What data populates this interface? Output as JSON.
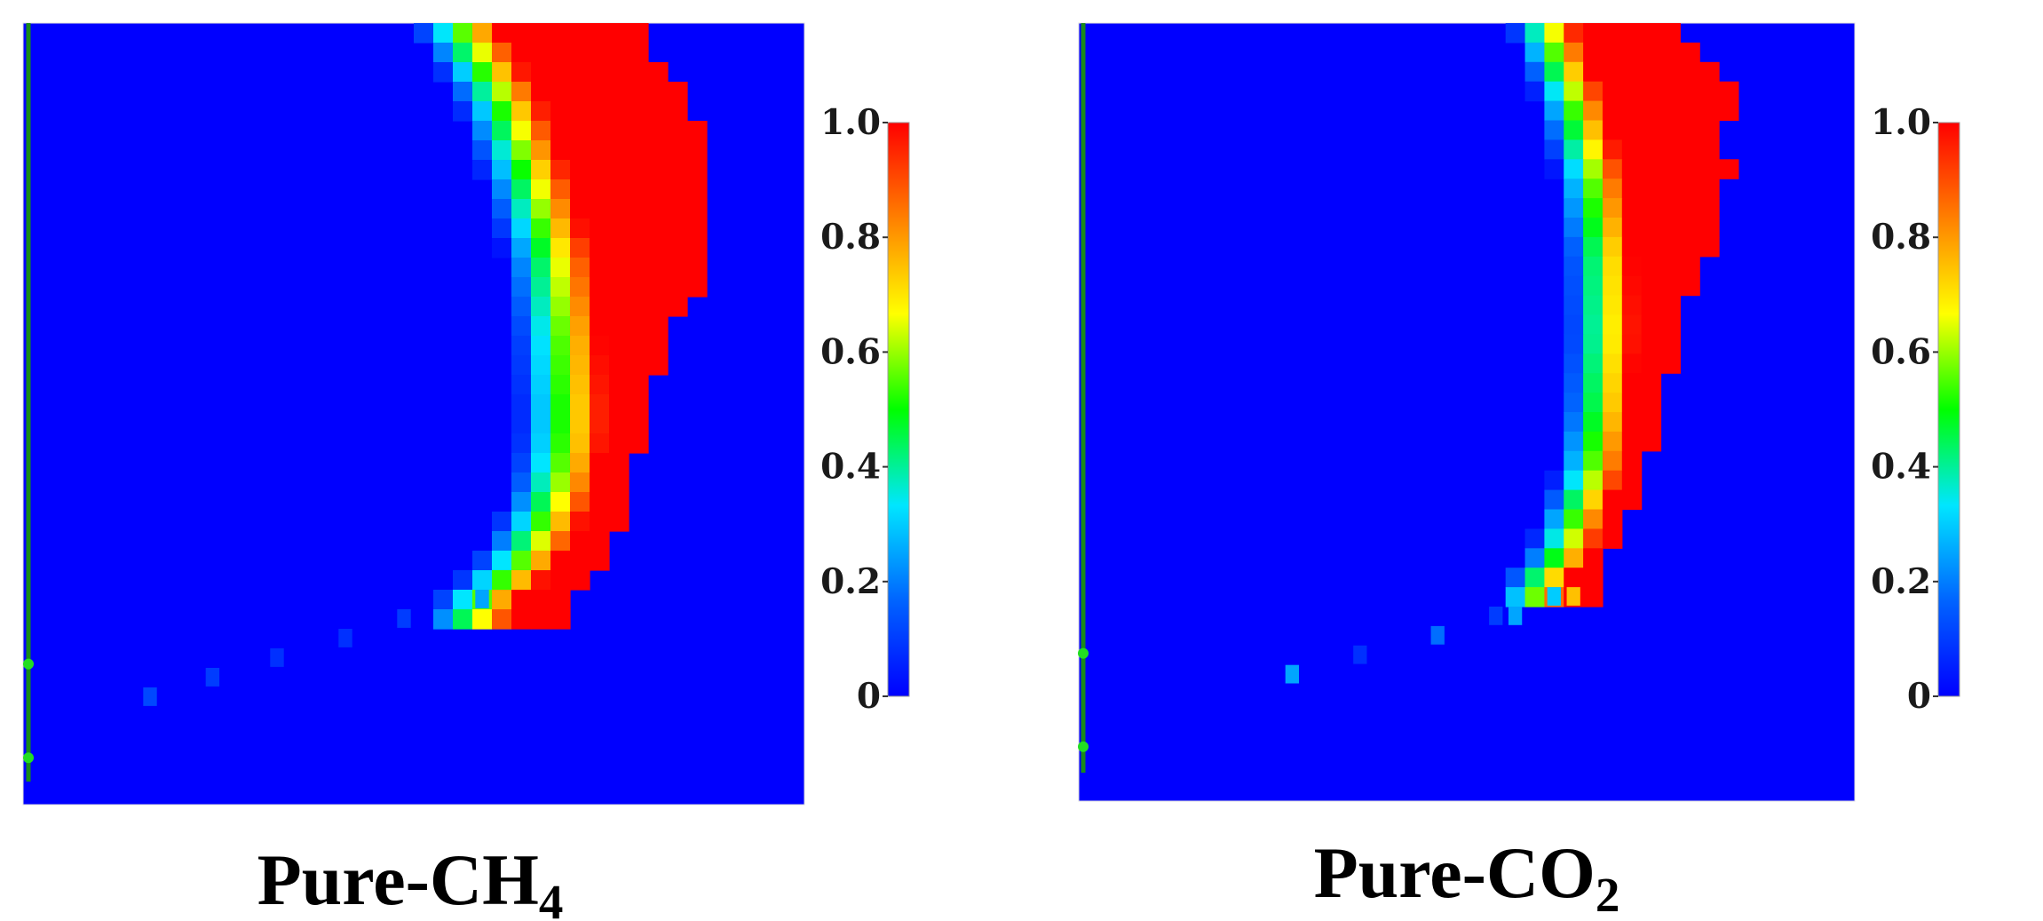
{
  "colormap": {
    "stops": [
      "#0000ff",
      "#0064ff",
      "#00e6ff",
      "#00ff00",
      "#ffff00",
      "#ff8000",
      "#ff0000"
    ],
    "background": "#0000ff",
    "well_color": "#1a8a1a",
    "well_node_color": "#22dd22",
    "border_color": "#dddddd"
  },
  "chart_data": [
    {
      "type": "heatmap",
      "caption": {
        "main": "Pure-CH",
        "sub": "4"
      },
      "colorbar": {
        "min": 0,
        "max": 1.0,
        "ticks": [
          {
            "value": 1.0,
            "label": "1.0"
          },
          {
            "value": 0.8,
            "label": "0.8"
          },
          {
            "value": 0.6,
            "label": "0.6"
          },
          {
            "value": 0.4,
            "label": "0.4"
          },
          {
            "value": 0.2,
            "label": "0.2"
          },
          {
            "value": 0,
            "label": "0"
          }
        ]
      },
      "grid": {
        "rows": 40,
        "cols": 40
      },
      "front": {
        "profile": [
          [
            0,
            24.2
          ],
          [
            4,
            26.5
          ],
          [
            8,
            27.9
          ],
          [
            12,
            29.0
          ],
          [
            16,
            29.5
          ],
          [
            20,
            29.7
          ],
          [
            22,
            29.6
          ],
          [
            24,
            29.2
          ],
          [
            26,
            28.4
          ],
          [
            28,
            27.2
          ],
          [
            29,
            26.0
          ],
          [
            30,
            25.0
          ]
        ],
        "transition_width": 4.5,
        "red_extent": [
          [
            0,
            31.5
          ],
          [
            2,
            32.5
          ],
          [
            3,
            34.2
          ],
          [
            4,
            33.0
          ],
          [
            5,
            35.8
          ],
          [
            6,
            34.0
          ],
          [
            7,
            35.8
          ],
          [
            8,
            34.0
          ],
          [
            9,
            35.8
          ],
          [
            10,
            34.0
          ],
          [
            11,
            35.8
          ],
          [
            12,
            34.5
          ],
          [
            13,
            35.2
          ],
          [
            14,
            34.2
          ],
          [
            15,
            33.5
          ],
          [
            16,
            33.0
          ],
          [
            18,
            32.5
          ],
          [
            20,
            32.0
          ],
          [
            22,
            31.5
          ],
          [
            24,
            31.0
          ],
          [
            26,
            30.5
          ],
          [
            28,
            29.5
          ],
          [
            30,
            28.0
          ]
        ],
        "dots": [
          {
            "row": 29,
            "col": 23.5,
            "value": 0.25
          },
          {
            "row": 30,
            "col": 19.5,
            "value": 0.1
          },
          {
            "row": 31,
            "col": 16.5,
            "value": 0.08
          },
          {
            "row": 32,
            "col": 13.0,
            "value": 0.08
          },
          {
            "row": 33,
            "col": 9.7,
            "value": 0.1
          },
          {
            "row": 34,
            "col": 6.5,
            "value": 0.12
          }
        ]
      },
      "well": {
        "nodes": [
          0.82,
          0.94
        ]
      }
    },
    {
      "type": "heatmap",
      "caption": {
        "main": "Pure-CO",
        "sub": "2"
      },
      "colorbar": {
        "min": 0,
        "max": 1.0,
        "ticks": [
          {
            "value": 1.0,
            "label": "1.0"
          },
          {
            "value": 0.8,
            "label": "0.8"
          },
          {
            "value": 0.6,
            "label": "0.6"
          },
          {
            "value": 0.4,
            "label": "0.4"
          },
          {
            "value": 0.2,
            "label": "0.2"
          },
          {
            "value": 0,
            "label": "0"
          }
        ]
      },
      "grid": {
        "rows": 40,
        "cols": 40
      },
      "front": {
        "profile": [
          [
            0,
            25.5
          ],
          [
            4,
            27.0
          ],
          [
            8,
            28.0
          ],
          [
            12,
            28.5
          ],
          [
            16,
            28.6
          ],
          [
            20,
            28.4
          ],
          [
            23,
            28.0
          ],
          [
            25,
            27.3
          ],
          [
            27,
            26.6
          ],
          [
            28,
            26.0
          ],
          [
            29,
            25.0
          ]
        ],
        "transition_width": 3.5,
        "red_extent": [
          [
            0,
            31.0
          ],
          [
            2,
            32.0
          ],
          [
            3,
            34.5
          ],
          [
            4,
            33.5
          ],
          [
            5,
            34.0
          ],
          [
            6,
            32.5
          ],
          [
            7,
            34.5
          ],
          [
            8,
            33.0
          ],
          [
            9,
            33.5
          ],
          [
            10,
            32.5
          ],
          [
            11,
            33.0
          ],
          [
            12,
            32.5
          ],
          [
            13,
            32.0
          ],
          [
            14,
            31.5
          ],
          [
            16,
            31.0
          ],
          [
            18,
            30.5
          ],
          [
            20,
            30.0
          ],
          [
            22,
            29.5
          ],
          [
            24,
            28.7
          ],
          [
            26,
            28.0
          ],
          [
            28,
            27.0
          ]
        ],
        "dots": [
          {
            "row": 29,
            "col": 25.5,
            "value": 0.75
          },
          {
            "row": 29,
            "col": 24.5,
            "value": 0.3
          },
          {
            "row": 30,
            "col": 22.5,
            "value": 0.25
          },
          {
            "row": 30,
            "col": 21.5,
            "value": 0.1
          },
          {
            "row": 31,
            "col": 18.5,
            "value": 0.18
          },
          {
            "row": 32,
            "col": 14.5,
            "value": 0.08
          },
          {
            "row": 33,
            "col": 11.0,
            "value": 0.25
          }
        ]
      },
      "well": {
        "nodes": [
          0.81,
          0.93
        ]
      }
    }
  ]
}
